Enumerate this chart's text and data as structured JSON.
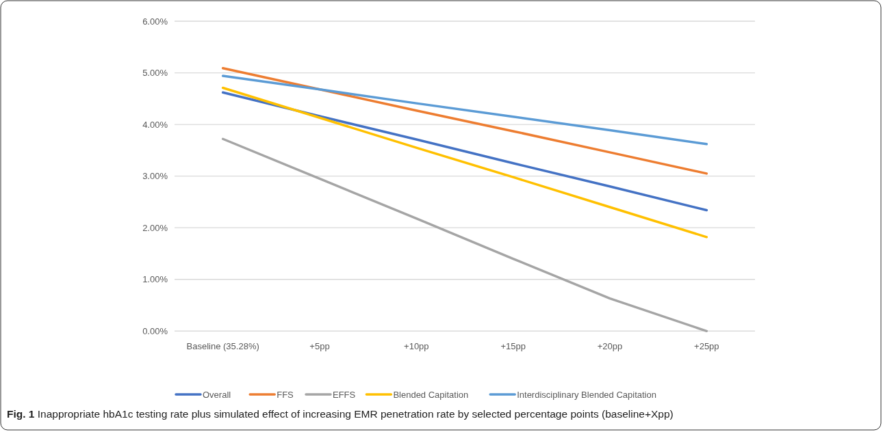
{
  "chart_data": {
    "type": "line",
    "categories": [
      "Baseline (35.28%)",
      "+5pp",
      "+10pp",
      "+15pp",
      "+20pp",
      "+25pp"
    ],
    "series": [
      {
        "name": "Overall",
        "color": "#4472c4",
        "values": [
          4.62,
          4.16,
          3.71,
          3.25,
          2.8,
          2.34
        ]
      },
      {
        "name": "FFS",
        "color": "#ed7d31",
        "values": [
          5.09,
          4.68,
          4.27,
          3.87,
          3.46,
          3.05
        ]
      },
      {
        "name": "EFFS",
        "color": "#a5a5a5",
        "values": [
          3.72,
          2.95,
          2.18,
          1.4,
          0.63,
          0
        ]
      },
      {
        "name": "Blended Capitation",
        "color": "#ffc000",
        "values": [
          4.71,
          4.13,
          3.55,
          2.98,
          2.4,
          1.82
        ]
      },
      {
        "name": "Interdisciplinary Blended Capitation",
        "color": "#5b9bd5",
        "values": [
          4.94,
          4.68,
          4.41,
          4.15,
          3.89,
          3.62
        ]
      }
    ],
    "ylim": [
      0,
      6
    ],
    "yticks": [
      {
        "value": 0,
        "label": "0.00%"
      },
      {
        "value": 1,
        "label": "1.00%"
      },
      {
        "value": 2,
        "label": "2.00%"
      },
      {
        "value": 3,
        "label": "3.00%"
      },
      {
        "value": 4,
        "label": "4.00%"
      },
      {
        "value": 5,
        "label": "5.00%"
      },
      {
        "value": 6,
        "label": "6.00%"
      }
    ],
    "grid": "y",
    "legend": "bottom",
    "marker": "none",
    "line_style": "solid",
    "annotations": [
      "Fig. 1 Inappropriate hbA1c testing rate plus simulated effect of increasing EMR penetration rate by selected percentage points (baseline+Xpp)"
    ]
  }
}
